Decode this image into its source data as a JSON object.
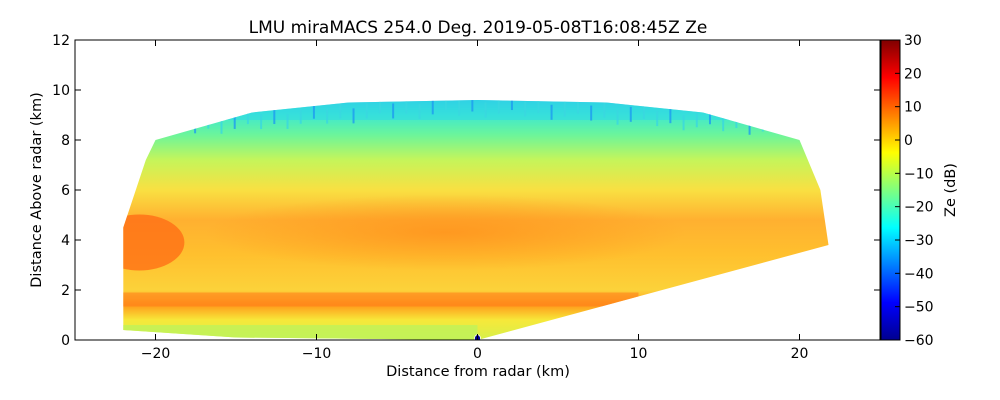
{
  "chart_data": {
    "type": "heatmap",
    "title": "LMU miraMACS 254.0 Deg. 2019-05-08T16:08:45Z  Ze",
    "xlabel": "Distance from radar (km)",
    "ylabel": "Distance Above radar  (km)",
    "xlim": [
      -25,
      25
    ],
    "ylim": [
      0,
      12
    ],
    "x_ticks": [
      "−20",
      "−10",
      "0",
      "10",
      "20"
    ],
    "x_tick_values": [
      -20,
      -10,
      0,
      10,
      20
    ],
    "y_ticks": [
      "0",
      "2",
      "4",
      "6",
      "8",
      "10",
      "12"
    ],
    "y_tick_values": [
      0,
      2,
      4,
      6,
      8,
      10,
      12
    ],
    "colorbar": {
      "label": "Ze (dB)",
      "range": [
        -60,
        30
      ],
      "ticks": [
        "−60",
        "−50",
        "−40",
        "−30",
        "−20",
        "−10",
        "0",
        "10",
        "20",
        "30"
      ],
      "tick_values": [
        -60,
        -50,
        -40,
        -30,
        -20,
        -10,
        0,
        10,
        20,
        30
      ],
      "colormap": "jet"
    },
    "rhi_sector": {
      "description": "RHI scan sector",
      "x_extent_km": [
        -22,
        21.8
      ],
      "cloud_top_km": 9.5,
      "left_top_km": 8.0,
      "right_top_km": 8.0,
      "right_low_edge_height_km": 3.8,
      "core_layer_km": [
        3,
        6
      ],
      "core_value_db": 5,
      "top_value_db": -25,
      "melting_layer_km": 1.8,
      "melting_layer_value_db": 12
    },
    "radar_position": {
      "x_km": 0,
      "y_km": 0
    }
  }
}
